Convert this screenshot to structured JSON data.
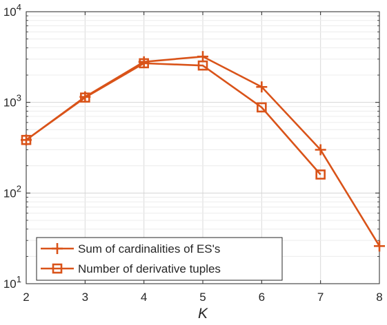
{
  "chart_data": {
    "type": "line",
    "title": "",
    "xlabel": "K",
    "ylabel": "",
    "x": [
      2,
      3,
      4,
      5,
      6,
      7,
      8
    ],
    "xlim": [
      2,
      8
    ],
    "xticks": [
      "2",
      "3",
      "4",
      "5",
      "6",
      "7",
      "8"
    ],
    "yscale": "log",
    "ylim": [
      10,
      10000
    ],
    "yticks": [
      {
        "base": "10",
        "exp": "1",
        "value": 10
      },
      {
        "base": "10",
        "exp": "2",
        "value": 100
      },
      {
        "base": "10",
        "exp": "3",
        "value": 1000
      },
      {
        "base": "10",
        "exp": "4",
        "value": 10000
      }
    ],
    "grid": true,
    "legend_position": "bottom-left",
    "series": [
      {
        "name": "Sum of cardinalities of ES's",
        "marker": "plus",
        "color": "#D95319",
        "x": [
          2,
          3,
          4,
          5,
          6,
          7,
          8
        ],
        "values": [
          385,
          1150,
          2800,
          3200,
          1480,
          300,
          26
        ]
      },
      {
        "name": "Number of derivative tuples",
        "marker": "square",
        "color": "#D95319",
        "x": [
          2,
          3,
          4,
          5,
          6,
          7
        ],
        "values": [
          385,
          1130,
          2700,
          2550,
          880,
          160
        ]
      }
    ]
  }
}
